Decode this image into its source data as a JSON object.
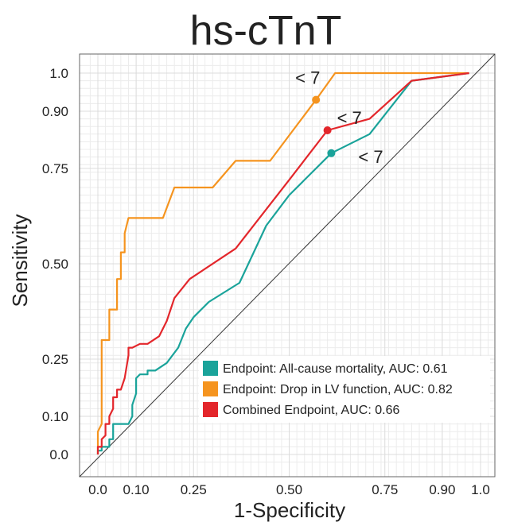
{
  "chart_data": {
    "type": "line",
    "title": "hs-cTnT",
    "xlabel": "1-Specificity",
    "ylabel": "Sensitivity",
    "xlim": [
      0,
      1
    ],
    "ylim": [
      0,
      1
    ],
    "x_ticks": [
      0.0,
      0.1,
      0.25,
      0.5,
      0.75,
      0.9,
      1.0
    ],
    "x_tick_labels": [
      "0.0",
      "0.10",
      "0.25",
      "0.50",
      "0.75",
      "0.90",
      "1.0"
    ],
    "y_ticks": [
      0.0,
      0.1,
      0.25,
      0.5,
      0.75,
      0.9,
      1.0
    ],
    "y_tick_labels": [
      "0.0",
      "0.10",
      "0.25",
      "0.50",
      "0.75",
      "0.90",
      "1.0"
    ],
    "grid": true,
    "reference_line": "diagonal",
    "legend_position": "bottom-right",
    "series": [
      {
        "name": "Endpoint: All-cause mortality, AUC: 0.61",
        "color": "#1aa39a",
        "points": [
          [
            0.0,
            0.0
          ],
          [
            0.0,
            0.01
          ],
          [
            0.01,
            0.01
          ],
          [
            0.01,
            0.02
          ],
          [
            0.03,
            0.02
          ],
          [
            0.03,
            0.04
          ],
          [
            0.04,
            0.04
          ],
          [
            0.04,
            0.08
          ],
          [
            0.08,
            0.08
          ],
          [
            0.09,
            0.1
          ],
          [
            0.09,
            0.13
          ],
          [
            0.1,
            0.16
          ],
          [
            0.1,
            0.2
          ],
          [
            0.11,
            0.21
          ],
          [
            0.13,
            0.21
          ],
          [
            0.13,
            0.22
          ],
          [
            0.15,
            0.22
          ],
          [
            0.18,
            0.24
          ],
          [
            0.21,
            0.28
          ],
          [
            0.23,
            0.33
          ],
          [
            0.25,
            0.36
          ],
          [
            0.29,
            0.4
          ],
          [
            0.37,
            0.45
          ],
          [
            0.44,
            0.6
          ],
          [
            0.5,
            0.68
          ],
          [
            0.61,
            0.79
          ],
          [
            0.71,
            0.84
          ],
          [
            0.82,
            0.98
          ],
          [
            0.97,
            1.0
          ]
        ],
        "highlight_point": [
          0.61,
          0.79
        ],
        "highlight_label": "< 7"
      },
      {
        "name": "Endpoint: Drop in LV function, AUC: 0.82",
        "color": "#f5941f",
        "points": [
          [
            0.0,
            0.0
          ],
          [
            0.0,
            0.06
          ],
          [
            0.01,
            0.08
          ],
          [
            0.01,
            0.3
          ],
          [
            0.03,
            0.3
          ],
          [
            0.03,
            0.38
          ],
          [
            0.05,
            0.38
          ],
          [
            0.05,
            0.46
          ],
          [
            0.06,
            0.46
          ],
          [
            0.06,
            0.53
          ],
          [
            0.07,
            0.53
          ],
          [
            0.07,
            0.58
          ],
          [
            0.08,
            0.62
          ],
          [
            0.17,
            0.62
          ],
          [
            0.2,
            0.7
          ],
          [
            0.3,
            0.7
          ],
          [
            0.36,
            0.77
          ],
          [
            0.45,
            0.77
          ],
          [
            0.51,
            0.85
          ],
          [
            0.57,
            0.93
          ],
          [
            0.62,
            1.0
          ],
          [
            0.97,
            1.0
          ]
        ],
        "highlight_point": [
          0.57,
          0.93
        ],
        "highlight_label": "< 7"
      },
      {
        "name": "Combined Endpoint, AUC: 0.66",
        "color": "#e3262b",
        "points": [
          [
            0.0,
            0.0
          ],
          [
            0.0,
            0.02
          ],
          [
            0.01,
            0.02
          ],
          [
            0.01,
            0.04
          ],
          [
            0.02,
            0.05
          ],
          [
            0.02,
            0.08
          ],
          [
            0.03,
            0.08
          ],
          [
            0.03,
            0.1
          ],
          [
            0.04,
            0.12
          ],
          [
            0.04,
            0.15
          ],
          [
            0.05,
            0.15
          ],
          [
            0.05,
            0.17
          ],
          [
            0.06,
            0.17
          ],
          [
            0.07,
            0.2
          ],
          [
            0.08,
            0.26
          ],
          [
            0.08,
            0.28
          ],
          [
            0.09,
            0.28
          ],
          [
            0.11,
            0.29
          ],
          [
            0.13,
            0.29
          ],
          [
            0.16,
            0.31
          ],
          [
            0.18,
            0.35
          ],
          [
            0.2,
            0.41
          ],
          [
            0.24,
            0.46
          ],
          [
            0.36,
            0.54
          ],
          [
            0.5,
            0.72
          ],
          [
            0.6,
            0.85
          ],
          [
            0.71,
            0.88
          ],
          [
            0.82,
            0.98
          ],
          [
            0.97,
            1.0
          ]
        ],
        "highlight_point": [
          0.6,
          0.85
        ],
        "highlight_label": "< 7"
      }
    ]
  }
}
